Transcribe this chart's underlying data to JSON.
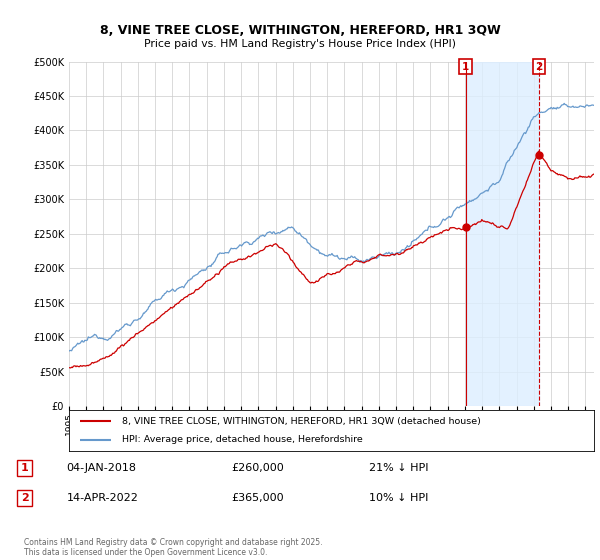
{
  "title_line1": "8, VINE TREE CLOSE, WITHINGTON, HEREFORD, HR1 3QW",
  "title_line2": "Price paid vs. HM Land Registry's House Price Index (HPI)",
  "legend_label1": "8, VINE TREE CLOSE, WITHINGTON, HEREFORD, HR1 3QW (detached house)",
  "legend_label2": "HPI: Average price, detached house, Herefordshire",
  "annotation1_date": "04-JAN-2018",
  "annotation1_price": "£260,000",
  "annotation1_hpi": "21% ↓ HPI",
  "annotation2_date": "14-APR-2022",
  "annotation2_price": "£365,000",
  "annotation2_hpi": "10% ↓ HPI",
  "footer": "Contains HM Land Registry data © Crown copyright and database right 2025.\nThis data is licensed under the Open Government Licence v3.0.",
  "red_color": "#cc0000",
  "blue_color": "#6699cc",
  "blue_fill_color": "#ddeeff",
  "background_color": "#ffffff",
  "grid_color": "#cccccc",
  "ylim": [
    0,
    500000
  ],
  "yticks": [
    0,
    50000,
    100000,
    150000,
    200000,
    250000,
    300000,
    350000,
    400000,
    450000,
    500000
  ],
  "sale1_year": 2018.04,
  "sale1_price": 260000,
  "sale2_year": 2022.29,
  "sale2_price": 365000,
  "xmin": 1995,
  "xmax": 2025.5
}
